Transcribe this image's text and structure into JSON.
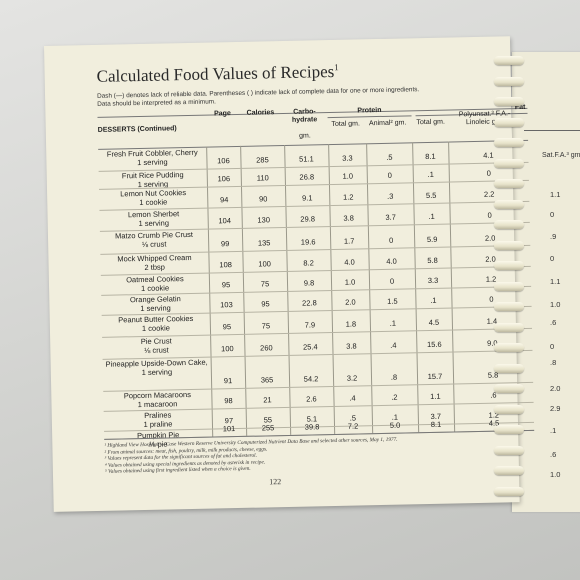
{
  "title": "Calculated Food Values of Recipes",
  "title_footnote": "1",
  "note": "Dash (—) denotes lack of reliable data. Parentheses ( ) indicate lack of complete data for one or more ingredients. Data should be interpreted as a minimum.",
  "section": "DESSERTS (Continued)",
  "headers": {
    "page": "Page",
    "calories": "Calories",
    "carbo": "Carbo-hydrate",
    "carbo_unit": "gm.",
    "protein": "Protein",
    "protein_total": "Total gm.",
    "protein_animal": "Animal² gm.",
    "fat": "Fat",
    "fat_total": "Total gm.",
    "fat_poly": "Polyunsat.³ F.A.-Linoleic gm."
  },
  "rows": [
    {
      "name": "Fresh Fruit Cobbler, Cherry",
      "serving": "1 serving",
      "page": "106",
      "calories": "285",
      "carbo": "51.1",
      "ptotal": "3.3",
      "panimal": ".5",
      "ftotal": "8.1",
      "fpoly": "4.1"
    },
    {
      "name": "Fruit Rice Pudding",
      "serving": "1 serving",
      "page": "106",
      "calories": "110",
      "carbo": "26.8",
      "ptotal": "1.0",
      "panimal": "0",
      "ftotal": ".1",
      "fpoly": "0"
    },
    {
      "name": "Lemon Nut Cookies",
      "serving": "1 cookie",
      "page": "94",
      "calories": "90",
      "carbo": "9.1",
      "ptotal": "1.2",
      "panimal": ".3",
      "ftotal": "5.5",
      "fpoly": "2.2"
    },
    {
      "name": "Lemon Sherbet",
      "serving": "1 serving",
      "page": "104",
      "calories": "130",
      "carbo": "29.8",
      "ptotal": "3.8",
      "panimal": "3.7",
      "ftotal": ".1",
      "fpoly": "0"
    },
    {
      "name": "Matzo Crumb Pie Crust",
      "serving": "⅛ crust",
      "page": "99",
      "calories": "135",
      "carbo": "19.6",
      "ptotal": "1.7",
      "panimal": "0",
      "ftotal": "5.9",
      "fpoly": "2.0"
    },
    {
      "name": "Mock Whipped Cream",
      "serving": "2 tbsp",
      "page": "108",
      "calories": "100",
      "carbo": "8.2",
      "ptotal": "4.0",
      "panimal": "4.0",
      "ftotal": "5.8",
      "fpoly": "2.0"
    },
    {
      "name": "Oatmeal Cookies",
      "serving": "1 cookie",
      "page": "95",
      "calories": "75",
      "carbo": "9.8",
      "ptotal": "1.0",
      "panimal": "0",
      "ftotal": "3.3",
      "fpoly": "1.2"
    },
    {
      "name": "Orange Gelatin",
      "serving": "1 serving",
      "page": "103",
      "calories": "95",
      "carbo": "22.8",
      "ptotal": "2.0",
      "panimal": "1.5",
      "ftotal": ".1",
      "fpoly": "0"
    },
    {
      "name": "Peanut Butter Cookies",
      "serving": "1 cookie",
      "page": "95",
      "calories": "75",
      "carbo": "7.9",
      "ptotal": "1.8",
      "panimal": ".1",
      "ftotal": "4.5",
      "fpoly": "1.4"
    },
    {
      "name": "Pie Crust",
      "serving": "⅛ crust",
      "page": "100",
      "calories": "260",
      "carbo": "25.4",
      "ptotal": "3.8",
      "panimal": ".4",
      "ftotal": "15.6",
      "fpoly": "9.0"
    },
    {
      "name": "Pineapple Upside-Down Cake,",
      "serving": "1 serving",
      "page": "91",
      "calories": "365",
      "carbo": "54.2",
      "ptotal": "3.2",
      "panimal": ".8",
      "ftotal": "15.7",
      "fpoly": "5.8"
    },
    {
      "name": "Popcorn Macaroons",
      "serving": "1 macaroon",
      "page": "98",
      "calories": "21",
      "carbo": "2.6",
      "ptotal": ".4",
      "panimal": ".2",
      "ftotal": "1.1",
      "fpoly": ".6"
    },
    {
      "name": "Pralines",
      "serving": "1 praline",
      "page": "97",
      "calories": "55",
      "carbo": "5.1",
      "ptotal": ".5",
      "panimal": ".1",
      "ftotal": "3.7",
      "fpoly": "1.2"
    },
    {
      "name": "Pumpkin Pie",
      "serving": "⅛ pie",
      "page": "101",
      "calories": "255",
      "carbo": "39.8",
      "ptotal": "7.2",
      "panimal": "5.0",
      "ftotal": "8.1",
      "fpoly": "4.5"
    }
  ],
  "footnotes": [
    "¹ Highland View Hospital — Case Western Reserve University Computerized Nutrient Data Base and selected other sources, May 1, 1977.",
    "² From animal sources: meat, fish, poultry, milk, milk products, cheese, eggs.",
    "³ Values represent data for the significant sources of fat and cholesterol.",
    "⁴ Values obtained using special ingredients as denoted by asterisk in recipe.",
    "⁵ Values obtained using first ingredient listed when a choice is given."
  ],
  "page_number": "122",
  "right_page": {
    "header": "Sat.F.A.³ gm.",
    "values": [
      "1.1",
      "0",
      ".9",
      "0",
      "1.1",
      "1.0",
      ".6",
      "0",
      ".8",
      "2.0",
      "2.9",
      ".1",
      ".6",
      "1.0"
    ]
  },
  "colors": {
    "paper": "#f1eedd",
    "binding_coil": "#f3efdc"
  }
}
